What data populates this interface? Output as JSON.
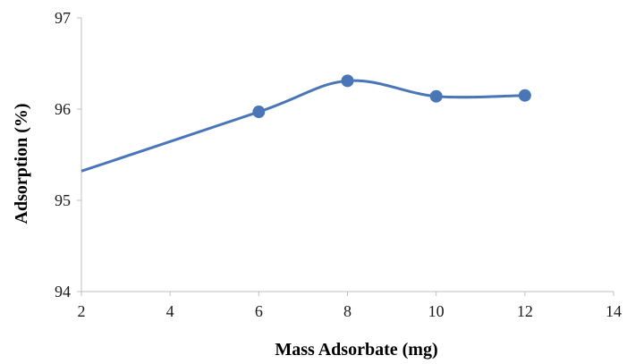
{
  "chart_data": {
    "type": "line",
    "title": "",
    "xlabel": "Mass Adsorbate (mg)",
    "ylabel": "Adsorption (%)",
    "xlim": [
      2,
      14
    ],
    "ylim": [
      94,
      97
    ],
    "xticks": [
      "2",
      "4",
      "6",
      "8",
      "10",
      "12",
      "14"
    ],
    "yticks": [
      "94",
      "95",
      "96",
      "97"
    ],
    "grid": false,
    "legend": "none",
    "line_color": "#4a76b8",
    "series": [
      {
        "smooth": true,
        "x": [
          2,
          6,
          8,
          10,
          12
        ],
        "y": [
          95.32,
          95.97,
          96.31,
          96.14,
          96.15
        ],
        "markers": [
          false,
          true,
          true,
          true,
          true
        ]
      }
    ]
  }
}
